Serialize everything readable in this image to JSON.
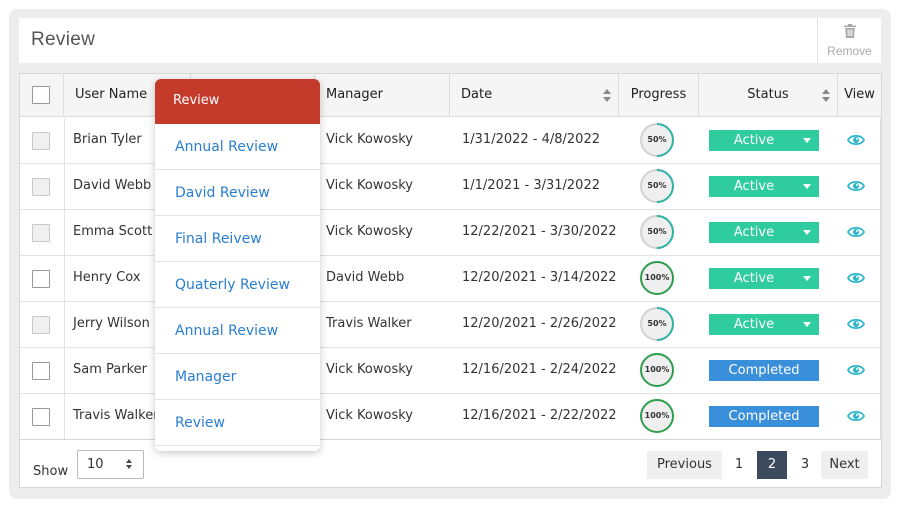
{
  "header": {
    "title": "Review",
    "remove_label": "Remove"
  },
  "table": {
    "columns": [
      "User Name",
      "Manager",
      "Date",
      "Progress",
      "Status",
      "View"
    ],
    "rows": [
      {
        "user": "Brian Tyler",
        "manager": "Vick Kowosky",
        "date": "1/31/2022 - 4/8/2022",
        "progress": "50%",
        "status": "Active",
        "checkbox_style": "grey"
      },
      {
        "user": "David Webb",
        "manager": "Vick Kowosky",
        "date": "1/1/2021 - 3/31/2022",
        "progress": "50%",
        "status": "Active",
        "checkbox_style": "grey"
      },
      {
        "user": "Emma Scott",
        "manager": "Vick Kowosky",
        "date": "12/22/2021 - 3/30/2022",
        "progress": "50%",
        "status": "Active",
        "checkbox_style": "grey"
      },
      {
        "user": "Henry Cox",
        "manager": "David Webb",
        "date": "12/20/2021 - 3/14/2022",
        "progress": "100%",
        "status": "Active",
        "checkbox_style": "white"
      },
      {
        "user": "Jerry Wilson",
        "manager": "Travis Walker",
        "date": "12/20/2021 - 2/26/2022",
        "progress": "50%",
        "status": "Active",
        "checkbox_style": "grey"
      },
      {
        "user": "Sam Parker",
        "manager": "Vick Kowosky",
        "date": "12/16/2021 - 2/24/2022",
        "progress": "100%",
        "status": "Completed",
        "checkbox_style": "white"
      },
      {
        "user": "Travis Walker",
        "manager": "Vick Kowosky",
        "date": "12/16/2021 - 2/22/2022",
        "progress": "100%",
        "status": "Completed",
        "checkbox_style": "white"
      }
    ]
  },
  "footer": {
    "show_label": "Show",
    "page_size": "10",
    "pagination": {
      "previous": "Previous",
      "pages": [
        "1",
        "2",
        "3"
      ],
      "current": "2",
      "next": "Next"
    }
  },
  "dropdown": {
    "header": "Review",
    "items": [
      "Annual Review",
      "David Review",
      "Final Reivew",
      "Quaterly Review",
      "Annual Review",
      "Manager",
      "Review"
    ]
  },
  "colors": {
    "active_status": "#2fcca0",
    "completed_status": "#3a8fdb",
    "dropdown_header": "#c43a2b",
    "dropdown_link": "#2a7ed0",
    "progress_full_ring": "#2e9e4c",
    "progress_half_arc": "#2fb3a5",
    "view_icon": "#2bb6c9",
    "current_page": "#3b4a5c"
  },
  "icons": {
    "remove": "trash-icon",
    "view": "eye-icon",
    "sort": "sort-icon",
    "status_dropdown": "caret-down-icon"
  }
}
